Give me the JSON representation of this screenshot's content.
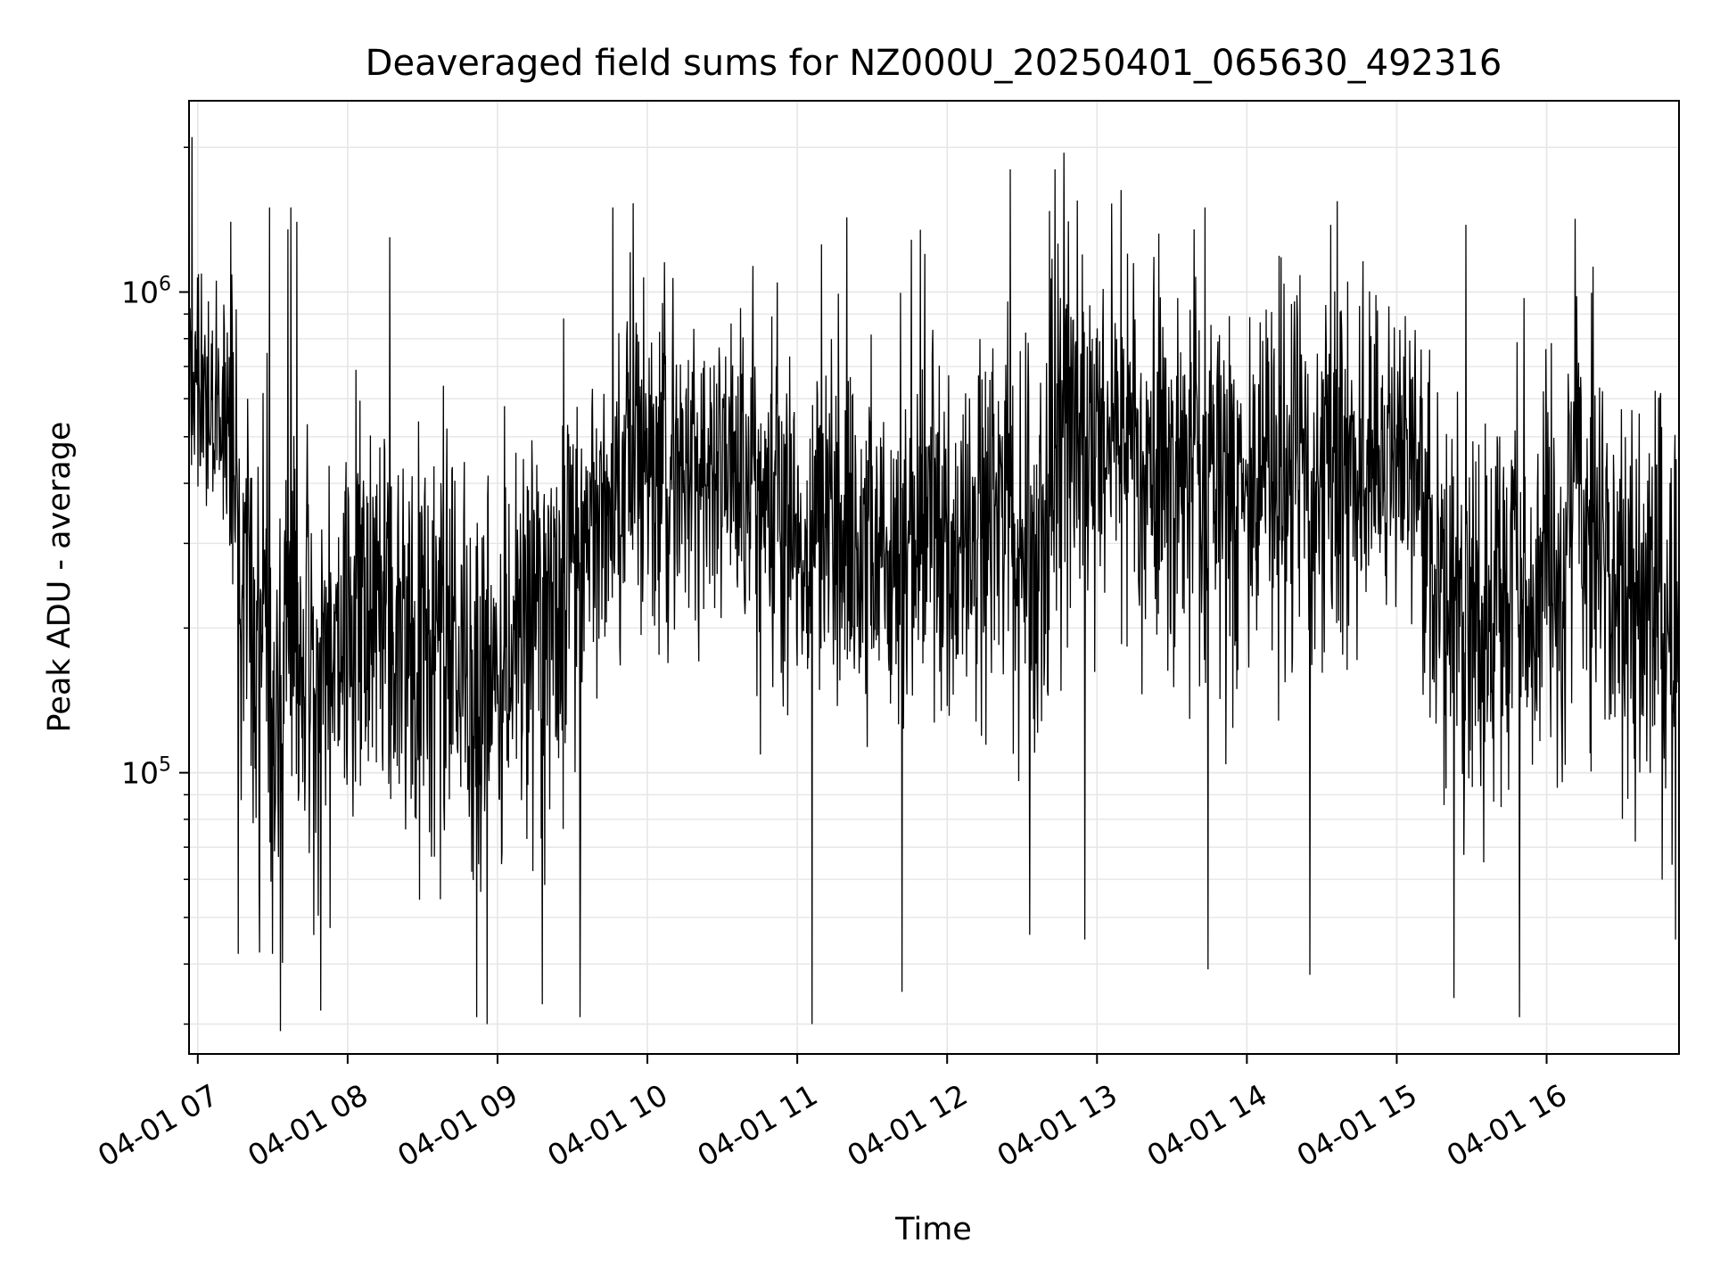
{
  "chart_data": {
    "type": "line",
    "title": "Deaveraged field sums for NZ000U_20250401_065630_492316",
    "xlabel": "Time",
    "ylabel": "Peak ADU - average",
    "yscale": "log",
    "grid": true,
    "line_color": "#000000",
    "grid_color": "#e6e6e6",
    "xlim": [
      "04-01 06:56:30",
      "04-01 16:53"
    ],
    "ylim": [
      26000,
      2500000
    ],
    "x_ticks": [
      "04-01 07",
      "04-01 08",
      "04-01 09",
      "04-01 10",
      "04-01 11",
      "04-01 12",
      "04-01 13",
      "04-01 14",
      "04-01 15",
      "04-01 16"
    ],
    "y_ticks": [
      {
        "base": "10",
        "exp": "5",
        "value": 100000
      },
      {
        "base": "10",
        "exp": "6",
        "value": 1000000
      }
    ],
    "series": [
      {
        "x_hours": [
          6.95,
          7.0,
          7.1,
          7.2,
          7.3,
          7.4,
          7.5,
          7.6,
          7.7,
          7.8,
          7.9,
          8.0,
          8.1,
          8.2,
          8.3,
          8.4,
          8.5,
          8.6,
          8.7,
          8.8,
          8.9,
          9.0,
          9.1,
          9.2,
          9.3,
          9.4,
          9.5,
          9.6,
          9.7,
          9.8,
          9.9,
          10.0,
          10.1,
          10.2,
          10.3,
          10.4,
          10.5,
          10.6,
          10.7,
          10.8,
          10.9,
          11.0,
          11.1,
          11.2,
          11.3,
          11.4,
          11.5,
          11.6,
          11.7,
          11.8,
          11.9,
          12.0,
          12.1,
          12.2,
          12.3,
          12.4,
          12.5,
          12.6,
          12.7,
          12.8,
          12.9,
          13.0,
          13.1,
          13.2,
          13.3,
          13.4,
          13.5,
          13.6,
          13.7,
          13.8,
          13.9,
          14.0,
          14.1,
          14.2,
          14.3,
          14.4,
          14.5,
          14.6,
          14.7,
          14.8,
          14.9,
          15.0,
          15.1,
          15.2,
          15.3,
          15.4,
          15.5,
          15.6,
          15.7,
          15.8,
          15.9,
          16.0,
          16.1,
          16.2,
          16.3,
          16.4,
          16.5,
          16.6,
          16.7,
          16.8,
          16.88
        ],
        "level": [
          600000,
          620000,
          600000,
          560000,
          250000,
          180000,
          160000,
          170000,
          160000,
          150000,
          160000,
          170000,
          180000,
          190000,
          185000,
          175000,
          170000,
          180000,
          190000,
          175000,
          165000,
          180000,
          200000,
          210000,
          220000,
          230000,
          260000,
          320000,
          360000,
          400000,
          440000,
          430000,
          420000,
          410000,
          420000,
          430000,
          440000,
          450000,
          420000,
          380000,
          340000,
          320000,
          300000,
          290000,
          300000,
          300000,
          300000,
          300000,
          300000,
          310000,
          320000,
          310000,
          300000,
          300000,
          320000,
          350000,
          300000,
          250000,
          450000,
          520000,
          520000,
          500000,
          480000,
          460000,
          420000,
          400000,
          400000,
          400000,
          400000,
          410000,
          400000,
          400000,
          400000,
          400000,
          410000,
          420000,
          420000,
          430000,
          450000,
          460000,
          450000,
          440000,
          420000,
          270000,
          230000,
          220000,
          220000,
          210000,
          220000,
          230000,
          240000,
          250000,
          280000,
          310000,
          340000,
          260000,
          240000,
          220000,
          220000,
          200000,
          190000
        ],
        "spread": [
          0.3,
          0.35,
          0.35,
          0.45,
          0.55,
          0.6,
          0.62,
          0.6,
          0.6,
          0.6,
          0.55,
          0.55,
          0.55,
          0.55,
          0.55,
          0.55,
          0.55,
          0.55,
          0.55,
          0.55,
          0.5,
          0.5,
          0.55,
          0.55,
          0.55,
          0.55,
          0.55,
          0.5,
          0.45,
          0.45,
          0.45,
          0.45,
          0.45,
          0.42,
          0.42,
          0.42,
          0.42,
          0.45,
          0.5,
          0.5,
          0.5,
          0.5,
          0.55,
          0.5,
          0.5,
          0.5,
          0.5,
          0.5,
          0.5,
          0.5,
          0.5,
          0.5,
          0.5,
          0.5,
          0.5,
          0.55,
          0.6,
          0.6,
          0.55,
          0.5,
          0.5,
          0.5,
          0.5,
          0.5,
          0.5,
          0.5,
          0.5,
          0.5,
          0.5,
          0.5,
          0.5,
          0.5,
          0.5,
          0.5,
          0.5,
          0.5,
          0.5,
          0.5,
          0.45,
          0.45,
          0.45,
          0.45,
          0.5,
          0.55,
          0.55,
          0.55,
          0.55,
          0.55,
          0.55,
          0.55,
          0.55,
          0.55,
          0.55,
          0.55,
          0.55,
          0.55,
          0.55,
          0.55,
          0.55,
          0.55,
          0.55
        ],
        "extreme_highs": [
          {
            "x": 6.96,
            "y": 2100000
          },
          {
            "x": 7.22,
            "y": 1400000
          },
          {
            "x": 7.48,
            "y": 1500000
          },
          {
            "x": 7.6,
            "y": 1350000
          },
          {
            "x": 7.62,
            "y": 1500000
          },
          {
            "x": 7.66,
            "y": 1400000
          },
          {
            "x": 8.28,
            "y": 1300000
          },
          {
            "x": 9.77,
            "y": 1500000
          },
          {
            "x": 10.17,
            "y": 1070000
          },
          {
            "x": 11.33,
            "y": 1430000
          },
          {
            "x": 11.85,
            "y": 1200000
          },
          {
            "x": 12.42,
            "y": 1800000
          },
          {
            "x": 12.72,
            "y": 1800000
          },
          {
            "x": 12.78,
            "y": 1950000
          },
          {
            "x": 12.87,
            "y": 1550000
          },
          {
            "x": 13.16,
            "y": 1630000
          },
          {
            "x": 13.72,
            "y": 1500000
          },
          {
            "x": 14.56,
            "y": 1380000
          },
          {
            "x": 15.46,
            "y": 1380000
          },
          {
            "x": 16.19,
            "y": 1420000
          }
        ],
        "extreme_lows": [
          {
            "x": 7.27,
            "y": 42000
          },
          {
            "x": 7.5,
            "y": 42000
          },
          {
            "x": 7.55,
            "y": 29000
          },
          {
            "x": 7.82,
            "y": 32000
          },
          {
            "x": 8.86,
            "y": 31000
          },
          {
            "x": 8.93,
            "y": 30000
          },
          {
            "x": 9.3,
            "y": 33000
          },
          {
            "x": 9.55,
            "y": 31000
          },
          {
            "x": 11.1,
            "y": 30000
          },
          {
            "x": 11.7,
            "y": 35000
          },
          {
            "x": 12.55,
            "y": 46000
          },
          {
            "x": 12.92,
            "y": 45000
          },
          {
            "x": 13.74,
            "y": 39000
          },
          {
            "x": 14.42,
            "y": 38000
          },
          {
            "x": 15.38,
            "y": 34000
          },
          {
            "x": 15.82,
            "y": 31000
          },
          {
            "x": 16.86,
            "y": 45000
          }
        ]
      }
    ]
  }
}
